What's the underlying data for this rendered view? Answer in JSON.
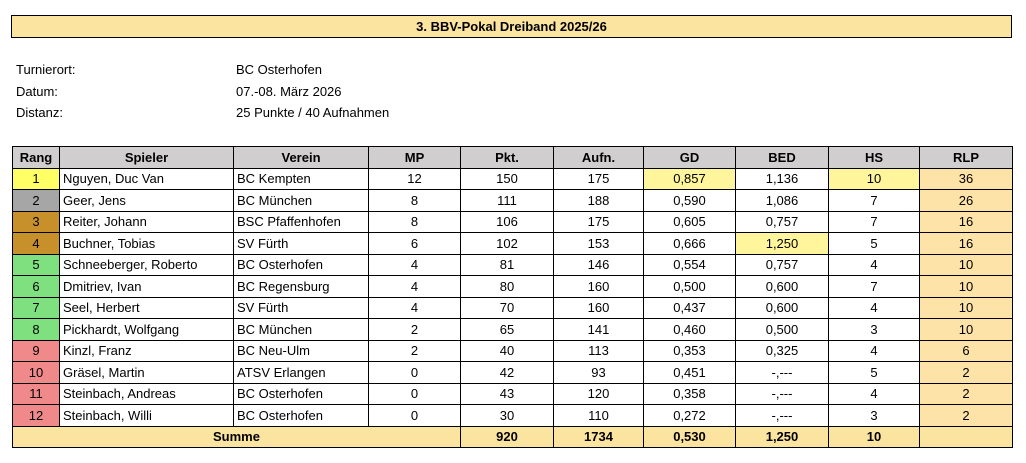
{
  "header": {
    "title": "3. BBV-Pokal Dreiband 2025/26"
  },
  "info": [
    {
      "label": "Turnierort:",
      "value": "BC Osterhofen"
    },
    {
      "label": "Datum:",
      "value": "07.-08. März 2026"
    },
    {
      "label": "Distanz:",
      "value": "25 Punkte / 40 Aufnahmen"
    }
  ],
  "table": {
    "columns": [
      "Rang",
      "Spieler",
      "Verein",
      "MP",
      "Pkt.",
      "Aufn.",
      "GD",
      "BED",
      "HS",
      "RLP"
    ],
    "rows": [
      [
        "1",
        "Nguyen, Duc Van",
        "BC Kempten",
        "12",
        "150",
        "175",
        "0,857",
        "1,136",
        "10",
        "36"
      ],
      [
        "2",
        "Geer, Jens",
        "BC München",
        "8",
        "111",
        "188",
        "0,590",
        "1,086",
        "7",
        "26"
      ],
      [
        "3",
        "Reiter, Johann",
        "BSC Pfaffenhofen",
        "8",
        "106",
        "175",
        "0,605",
        "0,757",
        "7",
        "16"
      ],
      [
        "4",
        "Buchner, Tobias",
        "SV Fürth",
        "6",
        "102",
        "153",
        "0,666",
        "1,250",
        "5",
        "16"
      ],
      [
        "5",
        "Schneeberger, Roberto",
        "BC Osterhofen",
        "4",
        "81",
        "146",
        "0,554",
        "0,757",
        "4",
        "10"
      ],
      [
        "6",
        "Dmitriev, Ivan",
        "BC Regensburg",
        "4",
        "80",
        "160",
        "0,500",
        "0,600",
        "7",
        "10"
      ],
      [
        "7",
        "Seel, Herbert",
        "SV Fürth",
        "4",
        "70",
        "160",
        "0,437",
        "0,600",
        "4",
        "10"
      ],
      [
        "8",
        "Pickhardt, Wolfgang",
        "BC München",
        "2",
        "65",
        "141",
        "0,460",
        "0,500",
        "3",
        "10"
      ],
      [
        "9",
        "Kinzl, Franz",
        "BC Neu-Ulm",
        "2",
        "40",
        "113",
        "0,353",
        "0,325",
        "4",
        "6"
      ],
      [
        "10",
        "Gräsel, Martin",
        "ATSV Erlangen",
        "0",
        "42",
        "93",
        "0,451",
        "-,---",
        "5",
        "2"
      ],
      [
        "11",
        "Steinbach, Andreas",
        "BC Osterhofen",
        "0",
        "43",
        "120",
        "0,358",
        "-,---",
        "4",
        "2"
      ],
      [
        "12",
        "Steinbach, Willi",
        "BC Osterhofen",
        "0",
        "30",
        "110",
        "0,272",
        "-,---",
        "3",
        "2"
      ]
    ],
    "summary": {
      "label": "Summe",
      "values": [
        "920",
        "1734",
        "0,530",
        "1,250",
        "10"
      ]
    }
  }
}
